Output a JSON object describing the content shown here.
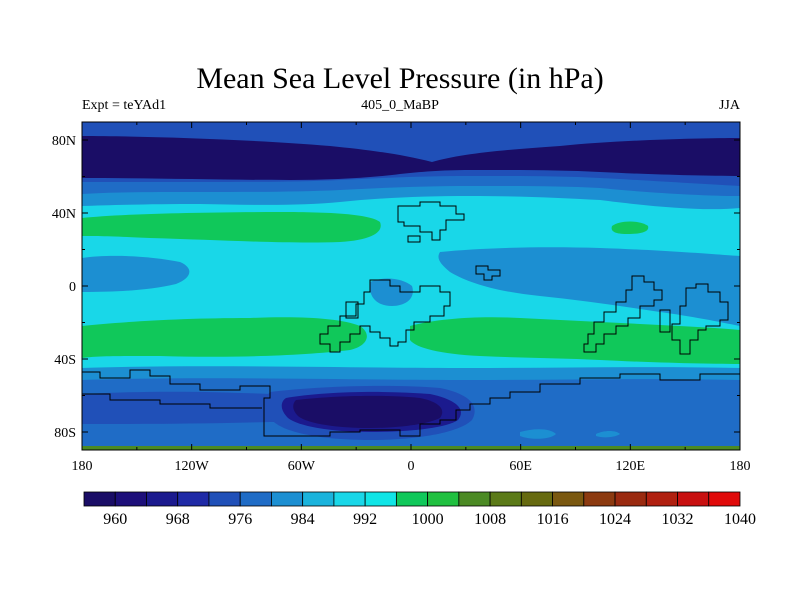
{
  "title": "Mean Sea Level Pressure (in hPa)",
  "subtitle_left": "Expt = teYAd1",
  "subtitle_center": "405_0_MaBP",
  "subtitle_right": "JJA",
  "map": {
    "lon_ticks": [
      "180",
      "120W",
      "60W",
      "0",
      "60E",
      "120E",
      "180"
    ],
    "lat_ticks": [
      "80N",
      "40N",
      "0",
      "40S",
      "80S"
    ],
    "lon_values": [
      -180,
      -120,
      -60,
      0,
      60,
      120,
      180
    ],
    "lat_values": [
      80,
      40,
      0,
      -40,
      -80
    ]
  },
  "colorbar": {
    "colors": [
      "#1a0d66",
      "#1d0f7a",
      "#1b1a8e",
      "#1f2aa6",
      "#2050b8",
      "#1f6cc6",
      "#1c8fd2",
      "#1ab3dc",
      "#19d7e8",
      "#10e5e6",
      "#10c85a",
      "#20c040",
      "#4b8a24",
      "#5b7a18",
      "#666a10",
      "#7a5810",
      "#8c3a10",
      "#9a2a10",
      "#b02010",
      "#c81010",
      "#e00a0a"
    ],
    "tick_labels": [
      "960",
      "968",
      "976",
      "984",
      "992",
      "1000",
      "1008",
      "1016",
      "1024",
      "1032",
      "1040"
    ]
  },
  "colors": {
    "band_poles": "#1b1a8e",
    "band_deep": "#1a0d66",
    "band_mid": "#2050b8",
    "band_light": "#1f6cc6",
    "ocean_cyan": "#19d7e8",
    "sky": "#1c8fd2",
    "green": "#10c85a"
  }
}
